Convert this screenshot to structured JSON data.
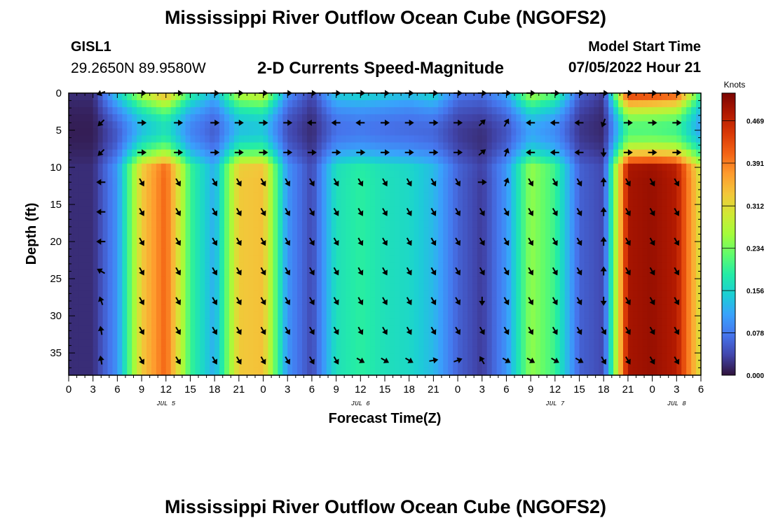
{
  "header": {
    "title": "Mississippi River Outflow Ocean Cube (NGOFS2)",
    "station": "GISL1",
    "coordinates": "29.2650N  89.9580W",
    "subtitle": "2-D Currents Speed-Magnitude",
    "model_start_label": "Model Start Time",
    "model_start_value": "07/05/2022 Hour 21"
  },
  "footer": {
    "title": "Mississippi River Outflow Ocean Cube (NGOFS2)"
  },
  "colors": {
    "colormap": [
      "#30123b",
      "#4145ab",
      "#4675ed",
      "#39a2fc",
      "#1bcfd4",
      "#24eca6",
      "#61fc6c",
      "#a4fc3b",
      "#d1e834",
      "#f3c63a",
      "#fe9b2d",
      "#f36315",
      "#d93806",
      "#b11901",
      "#7a0402"
    ],
    "arrow": "#000000"
  },
  "chart_data": {
    "type": "heatmap",
    "title": "2-D Currents Speed-Magnitude",
    "xlabel": "Forecast Time(Z)",
    "ylabel": "Depth (ft)",
    "x_ticks": [
      "0",
      "3",
      "6",
      "9",
      "12",
      "15",
      "18",
      "21",
      "0",
      "3",
      "6",
      "9",
      "12",
      "15",
      "18",
      "21",
      "0",
      "3",
      "6",
      "9",
      "12",
      "15",
      "18",
      "21",
      "0",
      "3",
      "6"
    ],
    "date_labels": [
      {
        "label": "JUL 5",
        "hour": 12
      },
      {
        "label": "JUL 6",
        "hour": 36
      },
      {
        "label": "JUL 7",
        "hour": 60
      },
      {
        "label": "JUL 8",
        "hour": 75
      }
    ],
    "x_range_hours": [
      0,
      78
    ],
    "y_ticks": [
      0,
      5,
      10,
      15,
      20,
      25,
      30,
      35
    ],
    "y_range_ft": [
      0,
      38
    ],
    "colorbar": {
      "label": "Knots",
      "ticks": [
        "0.469",
        "0.391",
        "0.312",
        "0.234",
        "0.156",
        "0.078",
        "0.000"
      ],
      "tick_values": [
        0.469,
        0.391,
        0.312,
        0.234,
        0.156,
        0.078,
        0.0
      ],
      "range": [
        0,
        0.52
      ]
    },
    "time_hours": [
      0,
      3,
      6,
      9,
      12,
      15,
      18,
      21,
      24,
      27,
      30,
      33,
      36,
      39,
      42,
      45,
      48,
      51,
      54,
      57,
      60,
      63,
      66,
      69,
      72,
      75,
      78
    ],
    "surface_speed": [
      0.02,
      0.02,
      0.15,
      0.28,
      0.36,
      0.2,
      0.13,
      0.28,
      0.3,
      0.1,
      0.04,
      0.15,
      0.16,
      0.15,
      0.14,
      0.16,
      0.08,
      0.07,
      0.12,
      0.27,
      0.22,
      0.06,
      0.03,
      0.46,
      0.45,
      0.43,
      0.2
    ],
    "bottom_speed": [
      0.02,
      0.02,
      0.1,
      0.33,
      0.41,
      0.2,
      0.12,
      0.33,
      0.34,
      0.1,
      0.04,
      0.17,
      0.19,
      0.17,
      0.16,
      0.13,
      0.06,
      0.03,
      0.1,
      0.25,
      0.2,
      0.06,
      0.04,
      0.49,
      0.5,
      0.48,
      0.3
    ],
    "arrow_times_hours": [
      4,
      9,
      13.5,
      18,
      21,
      24,
      27,
      30,
      33,
      36,
      39,
      42,
      45,
      48,
      51,
      54,
      57,
      60,
      63,
      66,
      69,
      72,
      75
    ],
    "arrow_depths_ft": [
      0,
      4,
      8,
      12,
      16,
      20,
      24,
      28,
      32,
      36
    ],
    "arrow_directions_deg": [
      [
        200,
        0,
        0,
        0,
        0,
        0,
        0,
        0,
        0,
        0,
        0,
        0,
        0,
        0,
        0,
        0,
        0,
        0,
        0,
        0,
        0,
        0,
        0
      ],
      [
        225,
        0,
        0,
        0,
        0,
        0,
        0,
        180,
        180,
        180,
        0,
        0,
        0,
        0,
        45,
        60,
        180,
        180,
        180,
        250,
        0,
        0,
        0
      ],
      [
        225,
        0,
        0,
        0,
        0,
        0,
        0,
        0,
        0,
        0,
        0,
        0,
        0,
        0,
        40,
        70,
        180,
        180,
        180,
        270,
        0,
        0,
        0
      ],
      [
        180,
        300,
        300,
        300,
        300,
        300,
        300,
        300,
        300,
        300,
        300,
        300,
        300,
        300,
        0,
        70,
        300,
        300,
        300,
        90,
        300,
        300,
        300
      ],
      [
        180,
        300,
        300,
        300,
        300,
        300,
        300,
        300,
        300,
        300,
        300,
        300,
        300,
        300,
        300,
        300,
        300,
        300,
        300,
        90,
        300,
        300,
        300
      ],
      [
        180,
        300,
        300,
        300,
        300,
        300,
        300,
        300,
        300,
        300,
        300,
        300,
        300,
        300,
        300,
        300,
        300,
        300,
        300,
        90,
        300,
        300,
        300
      ],
      [
        150,
        300,
        300,
        300,
        300,
        300,
        300,
        300,
        300,
        300,
        300,
        300,
        300,
        300,
        300,
        300,
        300,
        300,
        300,
        90,
        300,
        300,
        300
      ],
      [
        110,
        300,
        300,
        300,
        300,
        300,
        300,
        300,
        300,
        300,
        300,
        300,
        300,
        300,
        270,
        300,
        300,
        300,
        300,
        270,
        300,
        300,
        300
      ],
      [
        100,
        300,
        300,
        300,
        300,
        300,
        300,
        300,
        300,
        300,
        300,
        300,
        300,
        300,
        300,
        300,
        300,
        300,
        300,
        300,
        300,
        300,
        300
      ],
      [
        100,
        300,
        300,
        300,
        300,
        300,
        300,
        300,
        300,
        330,
        330,
        330,
        10,
        20,
        120,
        330,
        330,
        330,
        330,
        300,
        300,
        300,
        300
      ]
    ]
  }
}
